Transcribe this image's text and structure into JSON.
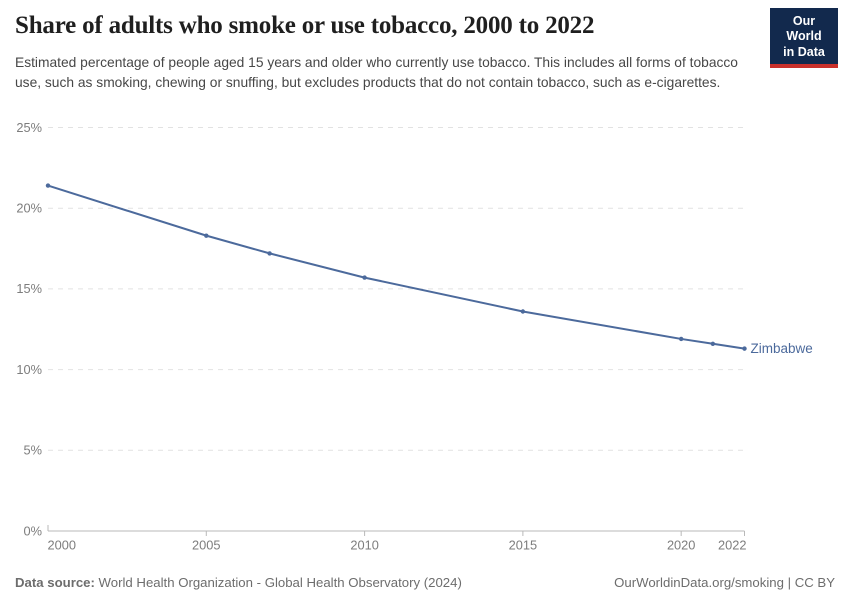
{
  "header": {
    "title": "Share of adults who smoke or use tobacco, 2000 to 2022",
    "subtitle": "Estimated percentage of people aged 15 years and older who currently use tobacco. This includes all forms of tobacco use, such as smoking, chewing or snuffing, but excludes products that do not contain tobacco, such as e-cigarettes."
  },
  "logo": {
    "line1": "Our World",
    "line2": "in Data",
    "bg_color": "#12294d",
    "stripe_color": "#c9302b"
  },
  "chart_data": {
    "type": "line",
    "title": "Share of adults who smoke or use tobacco, 2000 to 2022",
    "xlabel": "",
    "ylabel": "",
    "xlim": [
      2000,
      2022
    ],
    "ylim": [
      0,
      25
    ],
    "grid": "horizontal-dashed",
    "legend": "line-end-label",
    "xticks": [
      {
        "value": 2000,
        "label": "2000"
      },
      {
        "value": 2005,
        "label": "2005"
      },
      {
        "value": 2010,
        "label": "2010"
      },
      {
        "value": 2015,
        "label": "2015"
      },
      {
        "value": 2020,
        "label": "2020"
      },
      {
        "value": 2022,
        "label": "2022"
      }
    ],
    "yticks": [
      {
        "value": 0,
        "label": "0%"
      },
      {
        "value": 5,
        "label": "5%"
      },
      {
        "value": 10,
        "label": "10%"
      },
      {
        "value": 15,
        "label": "15%"
      },
      {
        "value": 20,
        "label": "20%"
      },
      {
        "value": 25,
        "label": "25%"
      }
    ],
    "series": [
      {
        "name": "Zimbabwe",
        "color": "#4c6a9c",
        "points": [
          {
            "x": 2000,
            "y": 21.4
          },
          {
            "x": 2005,
            "y": 18.3
          },
          {
            "x": 2007,
            "y": 17.2
          },
          {
            "x": 2010,
            "y": 15.7
          },
          {
            "x": 2015,
            "y": 13.6
          },
          {
            "x": 2020,
            "y": 11.9
          },
          {
            "x": 2021,
            "y": 11.6
          },
          {
            "x": 2022,
            "y": 11.3
          }
        ]
      }
    ]
  },
  "footer": {
    "datasource_label": "Data source:",
    "datasource_text": " World Health Organization - Global Health Observatory (2024)",
    "credit": "OurWorldinData.org/smoking | CC BY"
  }
}
